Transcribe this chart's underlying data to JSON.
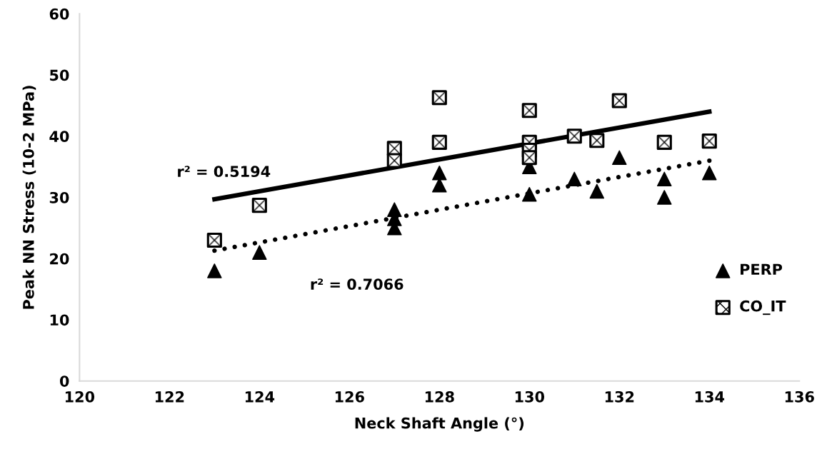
{
  "chart_data": {
    "type": "scatter",
    "xlabel": "Neck Shaft Angle (°)",
    "ylabel": "Peak NN Stress (10-2 MPa)",
    "xlim": [
      120,
      136
    ],
    "xticks": [
      120,
      122,
      124,
      126,
      128,
      130,
      132,
      134,
      136
    ],
    "ylim": [
      0,
      60
    ],
    "yticks": [
      0,
      10,
      20,
      30,
      40,
      50,
      60
    ],
    "grid": false,
    "legend": "right",
    "series": [
      {
        "name": "PERP",
        "color": "#000000",
        "marker": "triangle",
        "x": [
          123,
          124,
          127,
          127,
          127,
          128,
          128,
          130,
          130,
          131,
          131.5,
          132,
          133,
          133,
          134
        ],
        "values": [
          18,
          21,
          28,
          26.5,
          25,
          34,
          32,
          35,
          30.5,
          33,
          31,
          36.5,
          33,
          30,
          34
        ]
      },
      {
        "name": "CO_IT",
        "color": "#000000",
        "marker": "square",
        "x": [
          123,
          124,
          127,
          127,
          128,
          128,
          130,
          130,
          130,
          130,
          131,
          131.5,
          132,
          133,
          134
        ],
        "values": [
          23,
          28.7,
          38,
          36,
          46.3,
          39,
          44.2,
          39,
          37.7,
          36.5,
          40,
          39.3,
          45.8,
          39,
          39.2
        ]
      },
      {
        "type": "line",
        "color": "#000000",
        "marker": "none",
        "line_style": "solid",
        "x": [
          123,
          134
        ],
        "values": [
          29.7,
          44
        ]
      },
      {
        "type": "line",
        "color": "#000000",
        "marker": "none",
        "line_style": "dotted",
        "x": [
          123,
          134
        ],
        "values": [
          21.3,
          36
        ]
      }
    ],
    "annotations": [
      "r² = 0.5194",
      "r² = 0.7066"
    ]
  }
}
